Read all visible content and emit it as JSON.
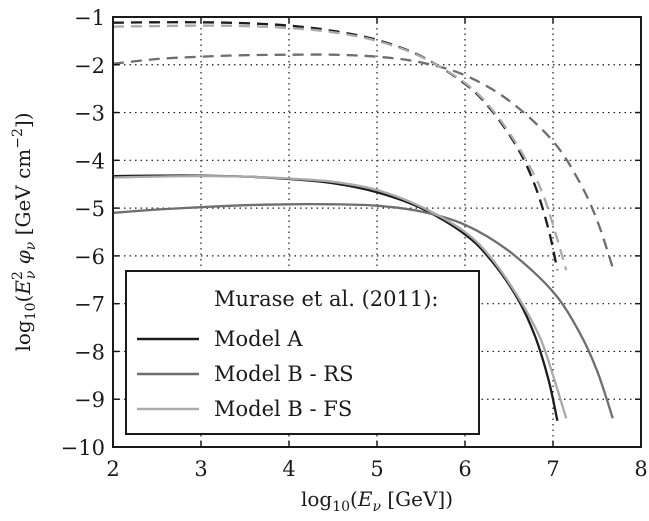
{
  "chart_data": {
    "type": "line",
    "xlabel_parts": [
      "log",
      "10",
      "(",
      "E",
      "ν",
      " [GeV])"
    ],
    "ylabel_parts": [
      "log",
      "10",
      "(",
      "E",
      "2",
      "ν",
      " ",
      "φ",
      "ν",
      " [GeV cm",
      "−2",
      "])"
    ],
    "xlim": [
      2,
      8
    ],
    "ylim": [
      -10,
      -1
    ],
    "x_ticks": [
      2,
      3,
      4,
      5,
      6,
      7,
      8
    ],
    "y_ticks": [
      -1,
      -2,
      -3,
      -4,
      -5,
      -6,
      -7,
      -8,
      -9,
      -10
    ],
    "x_tick_labels": [
      "2",
      "3",
      "4",
      "5",
      "6",
      "7",
      "8"
    ],
    "y_tick_labels": [
      "−1",
      "−2",
      "−3",
      "−4",
      "−5",
      "−6",
      "−7",
      "−8",
      "−9",
      "−10"
    ],
    "grid": true,
    "legend_title": "Murase et al. (2011):",
    "legend_position": "bottom-left",
    "series": [
      {
        "name": "Model A",
        "color": "#1c1c1c",
        "style": "solid",
        "x": [
          2.0,
          2.5,
          3.0,
          3.5,
          4.0,
          4.5,
          5.0,
          5.5,
          6.0,
          6.3,
          6.6,
          6.8,
          6.95,
          7.05
        ],
        "y": [
          -4.33,
          -4.32,
          -4.32,
          -4.34,
          -4.39,
          -4.48,
          -4.67,
          -5.0,
          -5.55,
          -6.1,
          -6.9,
          -7.7,
          -8.6,
          -9.45
        ]
      },
      {
        "name": "Model B - RS",
        "color": "#6e6e6e",
        "style": "solid",
        "x": [
          2.0,
          2.5,
          3.0,
          3.5,
          4.0,
          4.5,
          5.0,
          5.5,
          6.0,
          6.5,
          7.0,
          7.3,
          7.5,
          7.68
        ],
        "y": [
          -5.1,
          -5.03,
          -4.98,
          -4.94,
          -4.92,
          -4.92,
          -4.95,
          -5.07,
          -5.35,
          -5.9,
          -6.75,
          -7.6,
          -8.4,
          -9.4
        ]
      },
      {
        "name": "Model B - FS",
        "color": "#aaaaaa",
        "style": "solid",
        "x": [
          2.0,
          2.5,
          3.0,
          3.5,
          4.0,
          4.5,
          5.0,
          5.5,
          6.0,
          6.3,
          6.6,
          6.85,
          7.0,
          7.15
        ],
        "y": [
          -4.36,
          -4.34,
          -4.33,
          -4.34,
          -4.38,
          -4.45,
          -4.62,
          -4.97,
          -5.5,
          -6.05,
          -6.85,
          -7.7,
          -8.5,
          -9.4
        ]
      },
      {
        "name": "",
        "color": "#1c1c1c",
        "style": "dashed",
        "x": [
          2.0,
          2.5,
          3.0,
          3.5,
          4.0,
          4.5,
          5.0,
          5.5,
          6.0,
          6.3,
          6.6,
          6.8,
          6.95,
          7.05
        ],
        "y": [
          -1.12,
          -1.11,
          -1.11,
          -1.13,
          -1.18,
          -1.29,
          -1.48,
          -1.82,
          -2.4,
          -2.95,
          -3.75,
          -4.55,
          -5.45,
          -6.3
        ]
      },
      {
        "name": "",
        "color": "#6e6e6e",
        "style": "dashed",
        "x": [
          2.0,
          2.5,
          3.0,
          3.5,
          4.0,
          4.5,
          5.0,
          5.5,
          6.0,
          6.5,
          7.0,
          7.3,
          7.5,
          7.68
        ],
        "y": [
          -1.98,
          -1.88,
          -1.83,
          -1.8,
          -1.79,
          -1.79,
          -1.83,
          -1.95,
          -2.22,
          -2.75,
          -3.6,
          -4.45,
          -5.25,
          -6.25
        ]
      },
      {
        "name": "",
        "color": "#aaaaaa",
        "style": "dashed",
        "x": [
          2.0,
          2.5,
          3.0,
          3.5,
          4.0,
          4.5,
          5.0,
          5.5,
          6.0,
          6.3,
          6.6,
          6.85,
          7.0,
          7.15
        ],
        "y": [
          -1.2,
          -1.19,
          -1.18,
          -1.19,
          -1.23,
          -1.32,
          -1.5,
          -1.83,
          -2.38,
          -2.92,
          -3.7,
          -4.55,
          -5.35,
          -6.3
        ]
      }
    ]
  }
}
